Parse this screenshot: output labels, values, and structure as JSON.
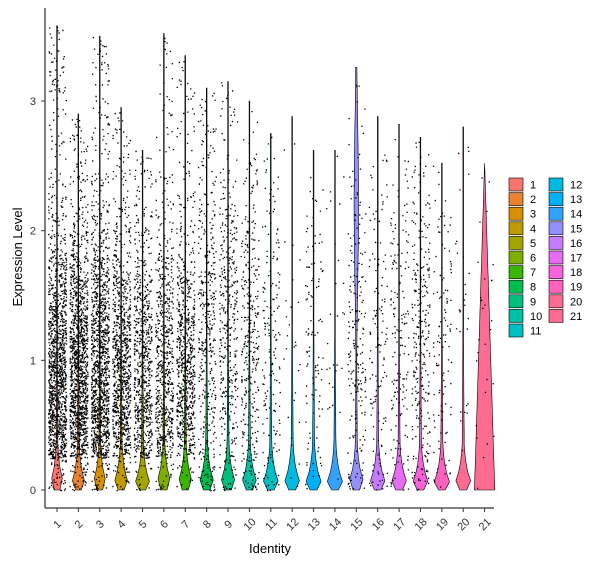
{
  "chart_data": {
    "type": "violin",
    "xlabel": "Identity",
    "ylabel": "Expression Level",
    "ylim": [
      -0.15,
      3.7
    ],
    "yticks": [
      0,
      1,
      2,
      3
    ],
    "categories": [
      "1",
      "2",
      "3",
      "4",
      "5",
      "6",
      "7",
      "8",
      "9",
      "10",
      "11",
      "12",
      "13",
      "14",
      "15",
      "16",
      "17",
      "18",
      "19",
      "20",
      "21"
    ],
    "colors": [
      "#F8766D",
      "#EA8331",
      "#D89000",
      "#C09B00",
      "#A3A500",
      "#7CAE00",
      "#39B600",
      "#00BB4E",
      "#00BF7D",
      "#00C1A3",
      "#00BFC4",
      "#00BAE0",
      "#00B0F6",
      "#35A2FF",
      "#9590FF",
      "#C77CFF",
      "#E76BF3",
      "#FA62DB",
      "#FF62BC",
      "#FF6C91",
      "#FF6C91"
    ],
    "max_values": [
      3.58,
      2.9,
      3.5,
      2.95,
      2.62,
      3.52,
      3.35,
      3.1,
      3.15,
      3.0,
      2.75,
      2.88,
      2.62,
      2.62,
      3.26,
      2.88,
      2.82,
      2.72,
      2.52,
      2.8,
      2.52
    ],
    "point_density": [
      1.0,
      1.0,
      0.95,
      0.7,
      0.55,
      0.5,
      0.55,
      0.3,
      0.3,
      0.25,
      0.12,
      0.02,
      0.08,
      0.02,
      0.15,
      0.1,
      0.12,
      0.2,
      0.08,
      0.02,
      0.02
    ],
    "legend": {
      "position": "right",
      "columns": [
        [
          "1",
          "2",
          "3",
          "4",
          "5",
          "6",
          "7",
          "8",
          "9",
          "10",
          "11"
        ],
        [
          "12",
          "13",
          "14",
          "15",
          "16",
          "17",
          "18",
          "19",
          "20",
          "21"
        ]
      ]
    },
    "grid": false
  }
}
